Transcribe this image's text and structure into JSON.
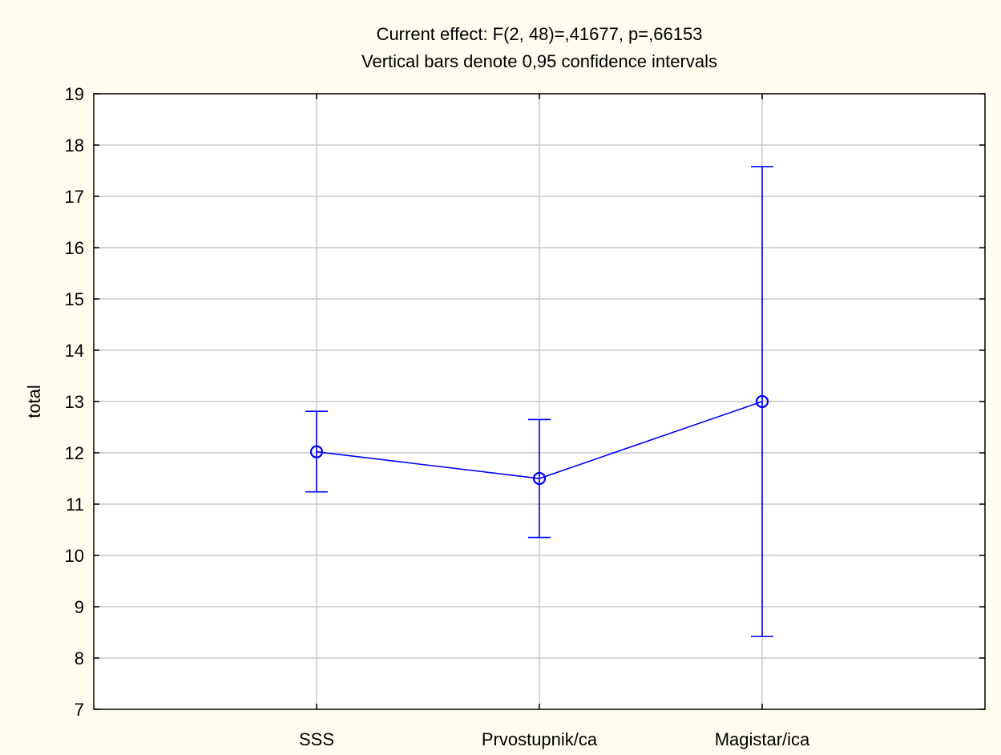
{
  "chart_data": {
    "type": "line",
    "title": "Current effect: F(2, 48)=,41677, p=,66153",
    "subtitle": "Vertical bars denote 0,95 confidence intervals",
    "xlabel": "",
    "ylabel": "total",
    "categories": [
      "SSS",
      "Prvostupnik/ca",
      "Magistar/ica"
    ],
    "series": [
      {
        "values": [
          12.02,
          11.5,
          13.0
        ],
        "ci_lower": [
          11.24,
          10.35,
          8.42
        ],
        "ci_upper": [
          12.81,
          12.65,
          17.58
        ]
      }
    ],
    "ylim": [
      7,
      19
    ],
    "yticks": [
      "7",
      "8",
      "9",
      "10",
      "11",
      "12",
      "13",
      "14",
      "15",
      "16",
      "17",
      "18",
      "19"
    ],
    "grid": true,
    "legend": "none",
    "colors": {
      "series": "#0000ff",
      "grid": "#c8c8c8",
      "background": "#fdfcee",
      "plot_background": "#ffffff"
    }
  }
}
